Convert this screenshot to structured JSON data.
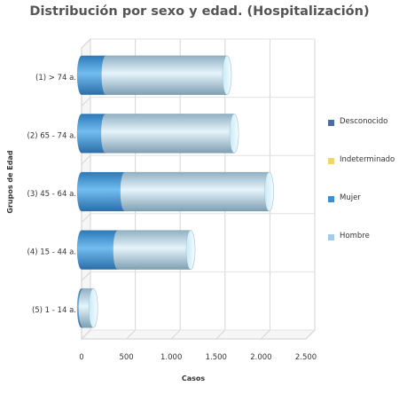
{
  "chart_data": {
    "type": "bar",
    "orientation": "horizontal",
    "stacked": true,
    "style": "3d-cylinder",
    "title": "Distribución por sexo y edad. (Hospitalización)",
    "xlabel": "Casos",
    "ylabel": "Grupos de Edad",
    "xlim": [
      0,
      2500
    ],
    "xticks": [
      0,
      500,
      1000,
      1500,
      2000,
      2500
    ],
    "xtick_labels": [
      "0",
      "500",
      "1.000",
      "1.500",
      "2.000",
      "2.500"
    ],
    "grid": true,
    "legend_position": "right",
    "categories": [
      "(1) > 74 a.",
      "(2) 65 - 74 a.",
      "(3) 45 - 64 a.",
      "(4) 15 - 44 a.",
      "(5) 1 - 14 a."
    ],
    "series": [
      {
        "name": "Desconocido",
        "color": "#4a6f9c",
        "values": [
          0,
          0,
          0,
          0,
          0
        ]
      },
      {
        "name": "Indeterminado",
        "color": "#f3d36b",
        "values": [
          0,
          0,
          0,
          0,
          0
        ]
      },
      {
        "name": "Mujer",
        "color": "#3d8fd1",
        "values": [
          270,
          265,
          480,
          400,
          15
        ]
      },
      {
        "name": "Hombre",
        "color": "#a6cbe8",
        "values": [
          1350,
          1435,
          1610,
          815,
          115
        ]
      }
    ]
  }
}
